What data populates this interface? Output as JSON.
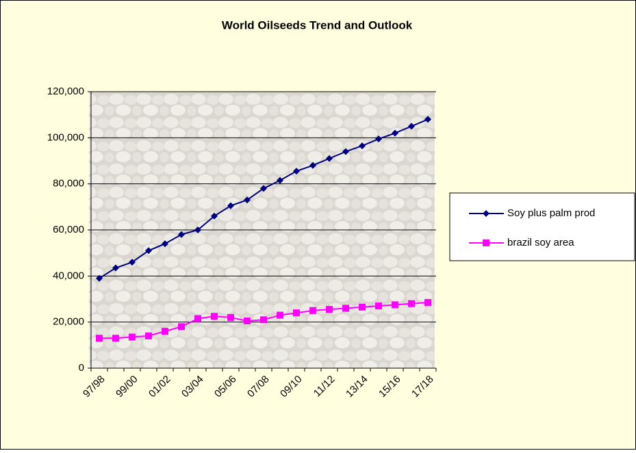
{
  "chart_data": {
    "type": "line",
    "title": "World Oilseeds Trend and Outlook",
    "categories": [
      "97/98",
      null,
      "99/00",
      null,
      "01/02",
      null,
      "03/04",
      null,
      "05/06",
      null,
      "07/08",
      null,
      "09/10",
      null,
      "11/12",
      null,
      "13/14",
      null,
      "15/16",
      null,
      "17/18"
    ],
    "series": [
      {
        "name": "Soy plus palm prod",
        "color": "#000080",
        "marker": "diamond",
        "values": [
          39000,
          43500,
          46000,
          51000,
          54000,
          58000,
          60000,
          66000,
          70500,
          73000,
          78000,
          81500,
          85500,
          88000,
          91000,
          94000,
          96500,
          99500,
          102000,
          105000,
          108000
        ]
      },
      {
        "name": "brazil soy area",
        "color": "#ff00ff",
        "marker": "square",
        "values": [
          13000,
          13000,
          13500,
          14000,
          16000,
          18000,
          21500,
          22500,
          22000,
          20500,
          21000,
          23000,
          24000,
          25000,
          25500,
          26000,
          26500,
          27000,
          27500,
          28000,
          28500
        ]
      }
    ],
    "ylim": [
      0,
      120000
    ],
    "yticks": [
      0,
      {
        "value": 20000,
        "label": "20,000"
      },
      {
        "value": 40000,
        "label": "40,000"
      },
      {
        "value": 60000,
        "label": "60,000"
      },
      {
        "value": 80000,
        "label": "80,000"
      },
      {
        "value": 100000,
        "label": "100,000"
      },
      {
        "value": 120000,
        "label": "120,000"
      }
    ],
    "grid": true,
    "legend": "right"
  }
}
